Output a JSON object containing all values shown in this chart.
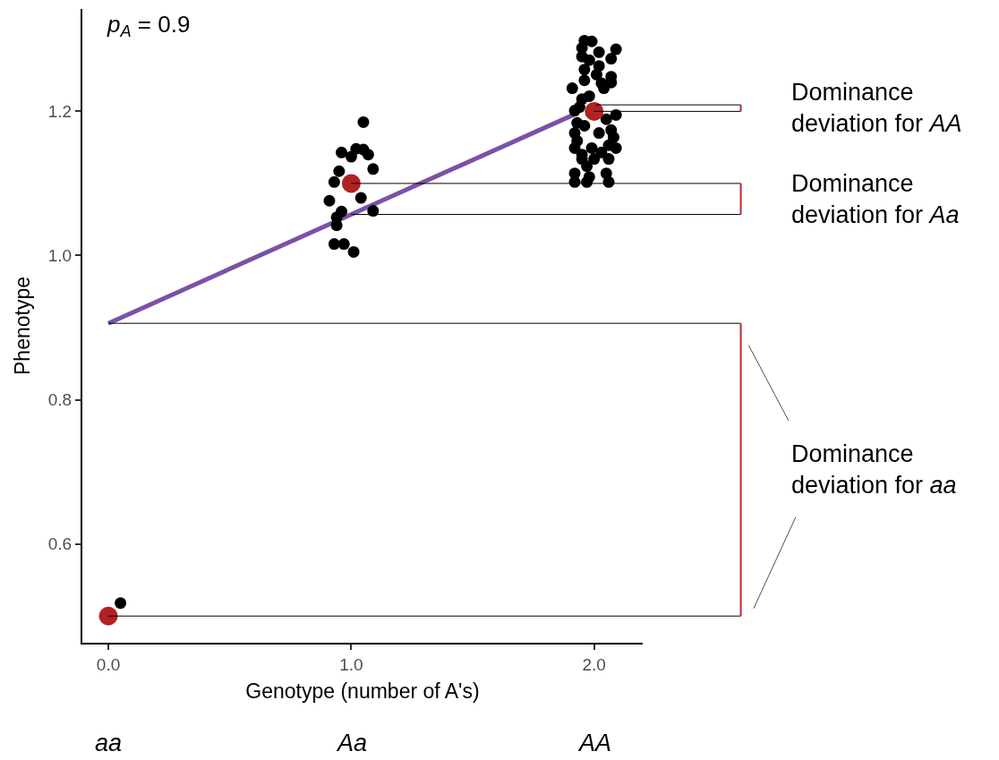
{
  "chart_data": {
    "type": "scatter",
    "xlabel": "Genotype (number of A's)",
    "ylabel": "Phenotype",
    "xlim": [
      -0.107,
      2.2
    ],
    "ylim": [
      0.463,
      1.342
    ],
    "xticks": [
      {
        "value": 0,
        "label": "0.0"
      },
      {
        "value": 1,
        "label": "1.0"
      },
      {
        "value": 2,
        "label": "2.0"
      }
    ],
    "yticks": [
      {
        "value": 0.6,
        "label": "0.6"
      },
      {
        "value": 0.8,
        "label": "0.8"
      },
      {
        "value": 1,
        "label": "1.0"
      },
      {
        "value": 1.2,
        "label": "1.2"
      }
    ],
    "grid": false,
    "marker": "circle",
    "series": [
      {
        "type": "line",
        "marker": "none",
        "color": "#7b52a6",
        "x": [
          0,
          1,
          1.92
        ],
        "values": [
          0.906,
          1.057,
          1.196
        ]
      },
      {
        "color": "#000000",
        "x": [
          0.05,
          1.05,
          0.96,
          1.02,
          1.05,
          1.07,
          1.0,
          0.95,
          1.09,
          0.93,
          0.91,
          1.04,
          0.96,
          1.09,
          0.94,
          0.94,
          0.93,
          0.97,
          1.01,
          1.96,
          1.99,
          1.95,
          2.02,
          2.09,
          1.95,
          1.98,
          2.07,
          2.02,
          1.96,
          2.01,
          2.07,
          1.96,
          2.03,
          2.07,
          1.91,
          2.04,
          1.95,
          1.98,
          1.92,
          1.94,
          2.09,
          2.05,
          1.93,
          1.96,
          2.07,
          1.92,
          2.02,
          2.08,
          1.93,
          2.06,
          2.09,
          1.92,
          1.99,
          1.95,
          2.03,
          1.95,
          2.0,
          2.06,
          1.97,
          1.92,
          2.05,
          1.98,
          1.92,
          1.97,
          2.06
        ],
        "values": [
          0.518,
          1.185,
          1.143,
          1.148,
          1.147,
          1.14,
          1.137,
          1.117,
          1.12,
          1.102,
          1.076,
          1.08,
          1.061,
          1.062,
          1.053,
          1.042,
          1.016,
          1.016,
          1.005,
          1.298,
          1.297,
          1.288,
          1.282,
          1.286,
          1.276,
          1.271,
          1.273,
          1.263,
          1.258,
          1.251,
          1.248,
          1.243,
          1.239,
          1.24,
          1.232,
          1.232,
          1.217,
          1.221,
          1.201,
          1.206,
          1.195,
          1.189,
          1.184,
          1.18,
          1.174,
          1.17,
          1.17,
          1.164,
          1.159,
          1.153,
          1.149,
          1.149,
          1.149,
          1.14,
          1.143,
          1.134,
          1.134,
          1.134,
          1.124,
          1.114,
          1.114,
          1.109,
          1.102,
          1.102,
          1.102
        ]
      },
      {
        "color": "#b22222",
        "x": [
          0,
          1,
          2
        ],
        "values": [
          0.5,
          1.1,
          1.2
        ]
      }
    ],
    "ref_lines": [
      {
        "axis": "y",
        "value": 1.2,
        "label": "Dominance deviation for AA"
      },
      {
        "axis": "y",
        "value": 1.209
      },
      {
        "axis": "y",
        "value": 1.1,
        "label": "Dominance deviation for Aa"
      },
      {
        "axis": "y",
        "value": 1.057
      },
      {
        "axis": "y",
        "value": 0.5
      },
      {
        "axis": "y",
        "value": 0.906
      }
    ],
    "annotations": [
      "p$_{A}$ = 0.9",
      "Dominance deviation for aa",
      "aa",
      "Aa",
      "AA"
    ]
  }
}
